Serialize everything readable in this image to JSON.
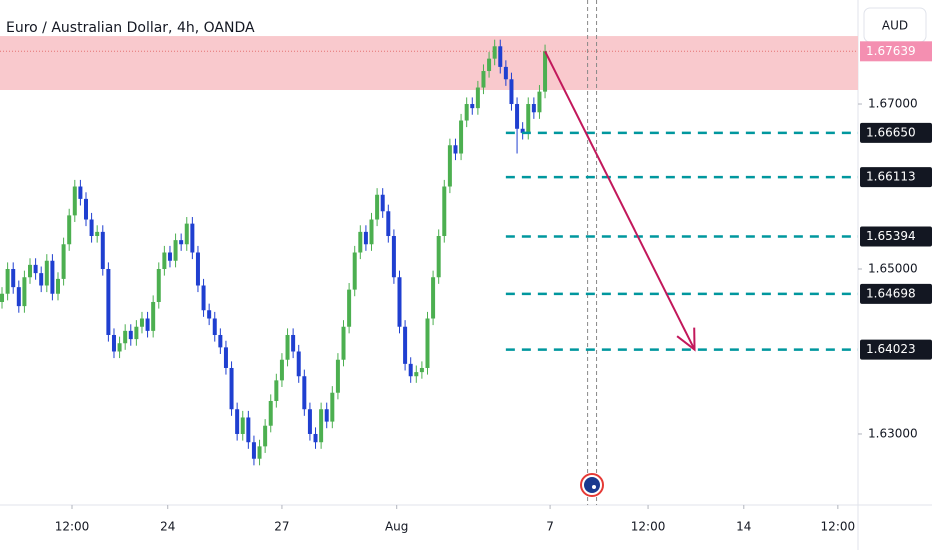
{
  "chart_data": {
    "type": "candlestick",
    "title": "Euro / Australian Dollar, 4h, OANDA",
    "currency": "AUD",
    "up_color": "#4caf50",
    "down_color": "#1f3fd0",
    "open": [
      1.646,
      1.647,
      1.65,
      1.6478,
      1.6455,
      1.649,
      1.6505,
      1.6495,
      1.648,
      1.651,
      1.647,
      1.6488,
      1.653,
      1.6565,
      1.66,
      1.6585,
      1.656,
      1.654,
      1.6545,
      1.65,
      1.642,
      1.64,
      1.641,
      1.6425,
      1.6415,
      1.643,
      1.644,
      1.6425,
      1.646,
      1.65,
      1.652,
      1.651,
      1.6535,
      1.653,
      1.6555,
      1.652,
      1.648,
      1.645,
      1.644,
      1.642,
      1.6405,
      1.638,
      1.633,
      1.63,
      1.632,
      1.629,
      1.627,
      1.6285,
      1.631,
      1.634,
      1.6365,
      1.639,
      1.642,
      1.64,
      1.637,
      1.633,
      1.63,
      1.629,
      1.633,
      1.6315,
      1.635,
      1.639,
      1.643,
      1.6475,
      1.652,
      1.6545,
      1.653,
      1.656,
      1.659,
      1.657,
      1.654,
      1.649,
      1.643,
      1.6385,
      1.637,
      1.6375,
      1.638,
      1.644,
      1.649,
      1.654,
      1.66,
      1.665,
      1.664,
      1.668,
      1.67,
      1.6695,
      1.672,
      1.674,
      1.6755,
      1.677,
      1.6745,
      1.673,
      1.67,
      1.667,
      1.6665,
      1.67,
      1.669,
      1.6715
    ],
    "high": [
      1.6478,
      1.6508,
      1.6508,
      1.6486,
      1.6498,
      1.6513,
      1.6513,
      1.6503,
      1.6518,
      1.6518,
      1.6496,
      1.6538,
      1.6573,
      1.6608,
      1.6608,
      1.6593,
      1.6568,
      1.6553,
      1.6553,
      1.6508,
      1.6428,
      1.6418,
      1.6433,
      1.6433,
      1.6438,
      1.6448,
      1.6448,
      1.6468,
      1.6508,
      1.6528,
      1.6528,
      1.6543,
      1.6543,
      1.6563,
      1.6563,
      1.6528,
      1.6488,
      1.6458,
      1.6448,
      1.6428,
      1.6413,
      1.6388,
      1.6338,
      1.6328,
      1.6328,
      1.6298,
      1.6293,
      1.6318,
      1.6348,
      1.6373,
      1.6398,
      1.6428,
      1.6428,
      1.6408,
      1.6378,
      1.6338,
      1.6308,
      1.6338,
      1.6338,
      1.6358,
      1.6398,
      1.6438,
      1.6483,
      1.6528,
      1.6553,
      1.6553,
      1.6568,
      1.6598,
      1.6598,
      1.6578,
      1.6548,
      1.6498,
      1.6438,
      1.6393,
      1.6383,
      1.6388,
      1.6448,
      1.6498,
      1.6548,
      1.6608,
      1.6658,
      1.6658,
      1.6688,
      1.6708,
      1.6708,
      1.6728,
      1.6748,
      1.6763,
      1.6778,
      1.6778,
      1.6753,
      1.6738,
      1.6708,
      1.6678,
      1.6708,
      1.6708,
      1.6723,
      1.6772
    ],
    "low": [
      1.6452,
      1.6462,
      1.647,
      1.6447,
      1.6447,
      1.6482,
      1.6487,
      1.6472,
      1.6472,
      1.6462,
      1.6462,
      1.648,
      1.6522,
      1.6557,
      1.6577,
      1.6552,
      1.6532,
      1.6532,
      1.6492,
      1.6412,
      1.6392,
      1.6392,
      1.6402,
      1.6407,
      1.6407,
      1.6422,
      1.6417,
      1.6417,
      1.6452,
      1.6492,
      1.6502,
      1.6502,
      1.6522,
      1.6522,
      1.6512,
      1.6472,
      1.6442,
      1.6432,
      1.6412,
      1.6397,
      1.6372,
      1.6322,
      1.6292,
      1.6292,
      1.6282,
      1.6262,
      1.6262,
      1.6277,
      1.6302,
      1.6332,
      1.6357,
      1.6382,
      1.6392,
      1.6362,
      1.6322,
      1.6292,
      1.6282,
      1.6282,
      1.6307,
      1.6307,
      1.6342,
      1.6382,
      1.6422,
      1.6467,
      1.6512,
      1.6522,
      1.6522,
      1.6552,
      1.6562,
      1.6532,
      1.6482,
      1.6422,
      1.6377,
      1.6362,
      1.6362,
      1.6367,
      1.6372,
      1.6432,
      1.6482,
      1.6532,
      1.6592,
      1.6632,
      1.6632,
      1.6672,
      1.6687,
      1.6687,
      1.6712,
      1.6732,
      1.6747,
      1.6737,
      1.6722,
      1.6692,
      1.664,
      1.6657,
      1.6657,
      1.6682,
      1.6682,
      1.6707
    ],
    "close": [
      1.647,
      1.65,
      1.6478,
      1.6455,
      1.649,
      1.6505,
      1.6495,
      1.648,
      1.651,
      1.647,
      1.6488,
      1.653,
      1.6565,
      1.66,
      1.6585,
      1.656,
      1.654,
      1.6545,
      1.65,
      1.642,
      1.64,
      1.641,
      1.6425,
      1.6415,
      1.643,
      1.644,
      1.6425,
      1.646,
      1.65,
      1.652,
      1.651,
      1.6535,
      1.653,
      1.6555,
      1.652,
      1.648,
      1.645,
      1.644,
      1.642,
      1.6405,
      1.638,
      1.633,
      1.63,
      1.632,
      1.629,
      1.627,
      1.6285,
      1.631,
      1.634,
      1.6365,
      1.639,
      1.642,
      1.64,
      1.637,
      1.633,
      1.63,
      1.629,
      1.633,
      1.6315,
      1.635,
      1.639,
      1.643,
      1.6475,
      1.652,
      1.6545,
      1.653,
      1.656,
      1.659,
      1.657,
      1.654,
      1.649,
      1.643,
      1.6385,
      1.637,
      1.6375,
      1.638,
      1.644,
      1.649,
      1.654,
      1.66,
      1.665,
      1.664,
      1.668,
      1.67,
      1.6695,
      1.672,
      1.674,
      1.6755,
      1.677,
      1.6745,
      1.673,
      1.67,
      1.667,
      1.6665,
      1.67,
      1.669,
      1.6715,
      1.67639
    ],
    "xlim": [
      -0.36,
      152.9
    ],
    "ylim": [
      1.62139,
      1.68261
    ],
    "xticks": [
      {
        "value": 12.5,
        "label": "12:00"
      },
      {
        "value": 29.6,
        "label": "24"
      },
      {
        "value": 50,
        "label": "27"
      },
      {
        "value": 70.5,
        "label": "Aug"
      },
      {
        "value": 97.9,
        "label": "7"
      },
      {
        "value": 115.4,
        "label": "12:00"
      },
      {
        "value": 132.5,
        "label": "14"
      },
      {
        "value": 149.3,
        "label": "12:00"
      }
    ],
    "yticks": [
      {
        "value": 1.63,
        "label": "1.63000"
      },
      {
        "value": 1.65,
        "label": "1.65000"
      },
      {
        "value": 1.67,
        "label": "1.67000"
      }
    ],
    "zone": [
      1.6717,
      1.67824
    ],
    "zone_color": "#f9c9cd",
    "current_price": {
      "value": 1.67639,
      "label": "1.67639"
    },
    "levels": [
      {
        "value": 1.6665,
        "label": "1.66650"
      },
      {
        "value": 1.66113,
        "label": "1.66113"
      },
      {
        "value": 1.65394,
        "label": "1.65394"
      },
      {
        "value": 1.64698,
        "label": "1.64698"
      },
      {
        "value": 1.64023,
        "label": "1.64023"
      }
    ],
    "levels_from": 90,
    "level_color": "#00979e",
    "arrow": {
      "x": [
        97,
        123.7
      ],
      "y": [
        1.67639,
        1.64023
      ]
    },
    "arrow_color": "#c2185b",
    "vlines": [
      104.6,
      106.2
    ]
  }
}
